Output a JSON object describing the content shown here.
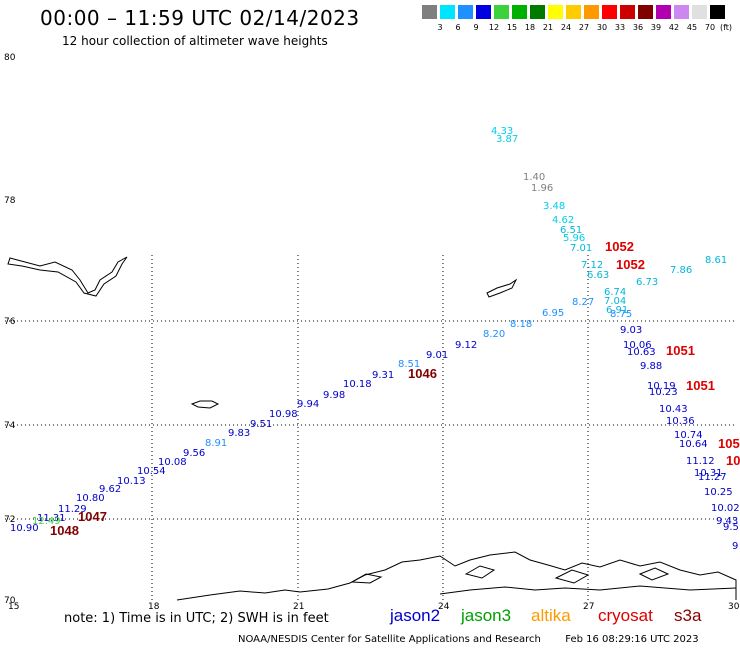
{
  "header": {
    "title": "00:00 – 11:59 UTC 02/14/2023",
    "subtitle": "12 hour collection of altimeter wave heights"
  },
  "scale": {
    "unit": "(ft)",
    "bins": [
      {
        "label": "3",
        "color": "#7f7f7f"
      },
      {
        "label": "6",
        "color": "#00e5ff"
      },
      {
        "label": "9",
        "color": "#1e90ff"
      },
      {
        "label": "12",
        "color": "#0000e0"
      },
      {
        "label": "15",
        "color": "#3cd23c"
      },
      {
        "label": "18",
        "color": "#00b000"
      },
      {
        "label": "21",
        "color": "#007a00"
      },
      {
        "label": "24",
        "color": "#ffff00"
      },
      {
        "label": "27",
        "color": "#ffcc00"
      },
      {
        "label": "30",
        "color": "#ff9900"
      },
      {
        "label": "33",
        "color": "#ff0000"
      },
      {
        "label": "36",
        "color": "#cc0000"
      },
      {
        "label": "39",
        "color": "#800000"
      },
      {
        "label": "42",
        "color": "#b000b0"
      },
      {
        "label": "45",
        "color": "#cc88ee"
      },
      {
        "label": "70",
        "color": "#e0e0e0"
      },
      {
        "label": "",
        "color": "#000000"
      }
    ]
  },
  "axes": {
    "lat_labels": [
      "80",
      "78",
      "76",
      "74",
      "72",
      "70"
    ],
    "lon_labels": [
      "15",
      "18",
      "21",
      "24",
      "27",
      "30"
    ]
  },
  "observations": [
    {
      "v": "10.90",
      "c": "#0000cc"
    },
    {
      "v": "11.31",
      "c": "#0000cc"
    },
    {
      "v": "11.29",
      "c": "#0000cc"
    },
    {
      "v": "10.80",
      "c": "#0000cc"
    },
    {
      "v": "9.62",
      "c": "#0000cc"
    },
    {
      "v": "10.13",
      "c": "#0000cc"
    },
    {
      "v": "10.54",
      "c": "#0000cc"
    },
    {
      "v": "10.08",
      "c": "#0000cc"
    },
    {
      "v": "9.56",
      "c": "#0000cc"
    },
    {
      "v": "8.91",
      "c": "#1e90ff"
    },
    {
      "v": "9.83",
      "c": "#0000cc"
    },
    {
      "v": "9.51",
      "c": "#0000cc"
    },
    {
      "v": "10.98",
      "c": "#0000cc"
    },
    {
      "v": "9.94",
      "c": "#0000cc"
    },
    {
      "v": "9.98",
      "c": "#0000cc"
    },
    {
      "v": "10.18",
      "c": "#0000cc"
    },
    {
      "v": "9.31",
      "c": "#0000cc"
    },
    {
      "v": "8.51",
      "c": "#1e90ff"
    },
    {
      "v": "9.01",
      "c": "#0000cc"
    },
    {
      "v": "9.12",
      "c": "#0000cc"
    },
    {
      "v": "8.20",
      "c": "#1e90ff"
    },
    {
      "v": "8.18",
      "c": "#1e90ff"
    },
    {
      "v": "6.95",
      "c": "#1e90ff"
    },
    {
      "v": "8.27",
      "c": "#1e90ff"
    },
    {
      "v": "4.33",
      "c": "#00d0e8"
    },
    {
      "v": "3.87",
      "c": "#00d0e8"
    },
    {
      "v": "1.40",
      "c": "#7f7f7f"
    },
    {
      "v": "1.96",
      "c": "#7f7f7f"
    },
    {
      "v": "3.48",
      "c": "#00d0e8"
    },
    {
      "v": "4.62",
      "c": "#00d0e8"
    },
    {
      "v": "6.51",
      "c": "#00b8d8"
    },
    {
      "v": "5.96",
      "c": "#00d0e8"
    },
    {
      "v": "7.01",
      "c": "#00b8d8"
    },
    {
      "v": "7.12",
      "c": "#00b8d8"
    },
    {
      "v": "6.63",
      "c": "#00b8d8"
    },
    {
      "v": "6.73",
      "c": "#00b8d8"
    },
    {
      "v": "7.86",
      "c": "#00b8d8"
    },
    {
      "v": "8.61",
      "c": "#00b8d8"
    },
    {
      "v": "6.74",
      "c": "#00b8d8"
    },
    {
      "v": "7.04",
      "c": "#00b8d8"
    },
    {
      "v": "6.91",
      "c": "#00b8d8"
    },
    {
      "v": "8.75",
      "c": "#1e90ff"
    },
    {
      "v": "9.03",
      "c": "#0000cc"
    },
    {
      "v": "10.06",
      "c": "#0000cc"
    },
    {
      "v": "10.63",
      "c": "#0000cc"
    },
    {
      "v": "9.88",
      "c": "#0000cc"
    },
    {
      "v": "10.19",
      "c": "#0000cc"
    },
    {
      "v": "10.23",
      "c": "#0000cc"
    },
    {
      "v": "10.43",
      "c": "#0000cc"
    },
    {
      "v": "10.36",
      "c": "#0000cc"
    },
    {
      "v": "10.74",
      "c": "#0000cc"
    },
    {
      "v": "10.64",
      "c": "#0000cc"
    },
    {
      "v": "11.12",
      "c": "#0000cc"
    },
    {
      "v": "10.31",
      "c": "#0000cc"
    },
    {
      "v": "11.27",
      "c": "#0000cc"
    },
    {
      "v": "10.25",
      "c": "#0000cc"
    },
    {
      "v": "10.02",
      "c": "#0000cc"
    },
    {
      "v": "9.43",
      "c": "#0000cc"
    },
    {
      "v": "9.5",
      "c": "#0000cc"
    },
    {
      "v": "9",
      "c": "#0000cc"
    },
    {
      "v": "12.49",
      "c": "#3cd23c"
    }
  ],
  "pressure_labels": [
    {
      "v": "1048",
      "c": "#800000"
    },
    {
      "v": "1047",
      "c": "#800000"
    },
    {
      "v": "1046",
      "c": "#800000"
    },
    {
      "v": "1052",
      "c": "#dd0000"
    },
    {
      "v": "1052",
      "c": "#dd0000"
    },
    {
      "v": "1051",
      "c": "#dd0000"
    },
    {
      "v": "1051",
      "c": "#dd0000"
    },
    {
      "v": "105",
      "c": "#dd0000"
    },
    {
      "v": "10",
      "c": "#dd0000"
    }
  ],
  "footer": {
    "note": "note:  1) Time is in UTC;  2) SWH is in feet",
    "legend": [
      {
        "name": "jason2",
        "color": "#0000cc"
      },
      {
        "name": "jason3",
        "color": "#00a000"
      },
      {
        "name": "altika",
        "color": "#ff9900"
      },
      {
        "name": "cryosat",
        "color": "#dd0000"
      },
      {
        "name": "s3a",
        "color": "#880000"
      }
    ],
    "credit": "NOAA/NESDIS Center for Satellite Applications and Research",
    "generated": "Feb 16 08:29:16 UTC 2023"
  }
}
